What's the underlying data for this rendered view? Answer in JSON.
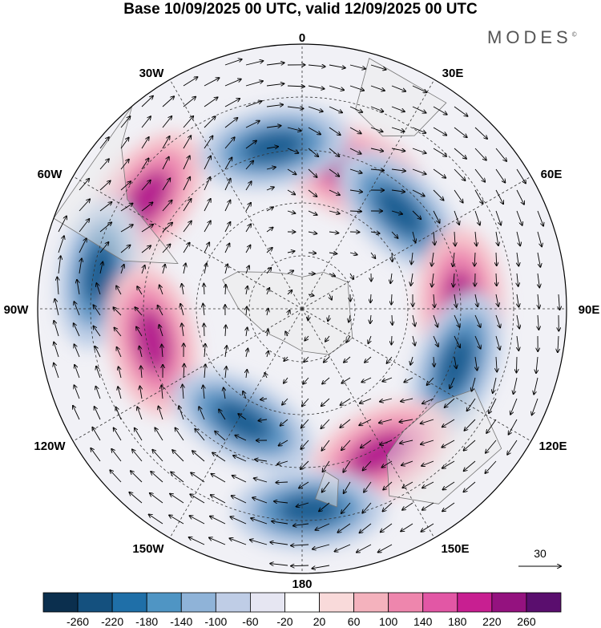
{
  "title": "Base 10/09/2025 00 UTC, valid 12/09/2025 00 UTC",
  "logo": "MODES",
  "logo_mark": "©",
  "longitude_labels": {
    "top": "0",
    "top_right": "30E",
    "right_upper": "60E",
    "right": "90E",
    "right_lower": "120E",
    "bottom_right": "150E",
    "bottom": "180",
    "bottom_left": "150W",
    "left_lower": "120W",
    "left": "90W",
    "left_upper": "60W",
    "top_left": "30W"
  },
  "reference_vector": {
    "label": "30"
  },
  "colorbar": {
    "colors": [
      "#0b2f4e",
      "#14507e",
      "#1f6fa8",
      "#4f95c4",
      "#8fb3d8",
      "#bfcde6",
      "#e6e6f2",
      "#ffffff",
      "#f9dada",
      "#f4b2bd",
      "#ee86ad",
      "#e257a5",
      "#c81f91",
      "#94127f",
      "#5a0e6e"
    ],
    "labels": [
      "-260",
      "-220",
      "-180",
      "-140",
      "-100",
      "-60",
      "-20",
      "20",
      "60",
      "100",
      "140",
      "180",
      "220",
      "260"
    ]
  },
  "anomaly_colors": {
    "neg_strong": "#1d5f93",
    "neg_mid": "#5f97c6",
    "neg_weak": "#bccde6",
    "pos_weak": "#f6c3cb",
    "pos_mid": "#ec86b0",
    "pos_strong": "#b5228f",
    "land": "#ececec"
  },
  "features": [
    {
      "id": "high-60w",
      "sign": "positive",
      "lon": -55,
      "lat_ring": 0.72
    },
    {
      "id": "high-20e",
      "sign": "positive",
      "lon": 20,
      "lat_ring": 0.55
    },
    {
      "id": "low-40e",
      "sign": "negative",
      "lon": 45,
      "lat_ring": 0.52
    },
    {
      "id": "low-20w",
      "sign": "negative",
      "lon": -10,
      "lat_ring": 0.62
    },
    {
      "id": "high-85e",
      "sign": "positive",
      "lon": 88,
      "lat_ring": 0.6
    },
    {
      "id": "low-110e",
      "sign": "negative",
      "lon": 110,
      "lat_ring": 0.62
    },
    {
      "id": "high-150e",
      "sign": "positive",
      "lon": 152,
      "lat_ring": 0.62
    },
    {
      "id": "low-80w",
      "sign": "negative",
      "lon": -80,
      "lat_ring": 0.78
    },
    {
      "id": "high-100w",
      "sign": "positive",
      "lon": -102,
      "lat_ring": 0.58
    },
    {
      "id": "low-150w",
      "sign": "negative",
      "lon": -152,
      "lat_ring": 0.48
    },
    {
      "id": "low-180",
      "sign": "negative",
      "lon": 178,
      "lat_ring": 0.76
    }
  ]
}
